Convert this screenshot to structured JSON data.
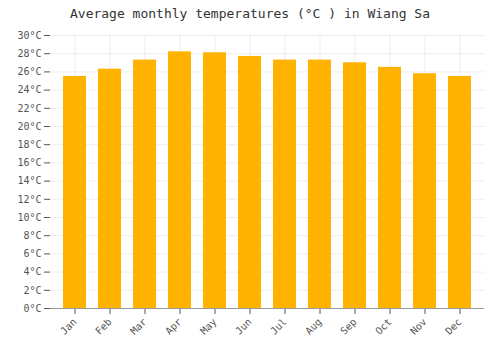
{
  "chart_data": {
    "type": "bar",
    "title": "Average monthly temperatures (°C ) in Wiang Sa",
    "categories": [
      "Jan",
      "Feb",
      "Mar",
      "Apr",
      "May",
      "Jun",
      "Jul",
      "Aug",
      "Sep",
      "Oct",
      "Nov",
      "Dec"
    ],
    "values": [
      25.5,
      26.3,
      27.3,
      28.2,
      28.1,
      27.7,
      27.3,
      27.3,
      27.0,
      26.5,
      25.8,
      25.5
    ],
    "color": "#FFB300",
    "ylim": [
      0,
      30
    ],
    "yticks": [
      {
        "value": 0,
        "label": "0°C"
      },
      {
        "value": 2,
        "label": "2°C"
      },
      {
        "value": 4,
        "label": "4°C"
      },
      {
        "value": 6,
        "label": "6°C"
      },
      {
        "value": 8,
        "label": "8°C"
      },
      {
        "value": 10,
        "label": "10°C"
      },
      {
        "value": 12,
        "label": "12°C"
      },
      {
        "value": 14,
        "label": "14°C"
      },
      {
        "value": 16,
        "label": "16°C"
      },
      {
        "value": 18,
        "label": "18°C"
      },
      {
        "value": 20,
        "label": "20°C"
      },
      {
        "value": 22,
        "label": "22°C"
      },
      {
        "value": 24,
        "label": "24°C"
      },
      {
        "value": 26,
        "label": "26°C"
      },
      {
        "value": 28,
        "label": "28°C"
      },
      {
        "value": 30,
        "label": "30°C"
      }
    ],
    "grid": true
  }
}
